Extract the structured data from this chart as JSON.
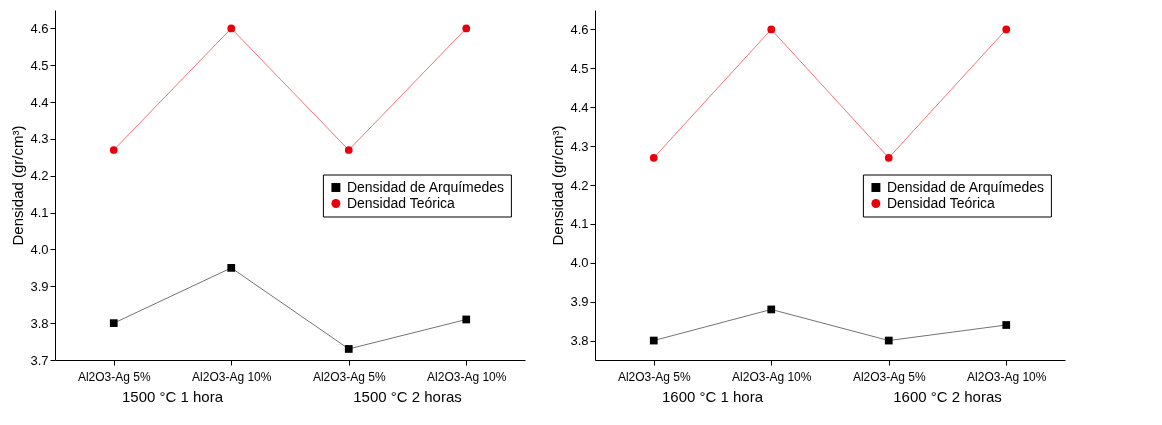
{
  "chart_data": [
    {
      "type": "line",
      "ylabel": "Densidad (gr/cm³)",
      "categories": [
        "Al2O3-Ag 5%",
        "Al2O3-Ag 10%",
        "Al2O3-Ag 5%",
        "Al2O3-Ag 10%"
      ],
      "ylim": [
        3.7,
        4.65
      ],
      "yticks": [
        3.7,
        3.8,
        3.9,
        {
          "value": 4,
          "label": "4.0"
        },
        4.1,
        4.2,
        4.3,
        4.4,
        4.5,
        4.6
      ],
      "grid": false,
      "legend": "right",
      "annotations": [
        "1500 °C 1 hora",
        "1500 °C 2 horas"
      ],
      "series": [
        {
          "name": "Densidad de Arquímedes",
          "color": "#000000",
          "marker": "square",
          "values": [
            3.8,
            3.95,
            3.73,
            3.81
          ]
        },
        {
          "name": "Densidad Teórica",
          "color": "#e8000b",
          "marker": "circle",
          "values": [
            4.27,
            4.6,
            4.27,
            4.6
          ]
        }
      ]
    },
    {
      "type": "line",
      "ylabel": "Densidad (gr/cm³)",
      "categories": [
        "Al2O3-Ag 5%",
        "Al2O3-Ag 10%",
        "Al2O3-Ag 5%",
        "Al2O3-Ag 10%"
      ],
      "ylim": [
        3.75,
        4.65
      ],
      "yticks": [
        3.8,
        3.9,
        {
          "value": 4,
          "label": "4.0"
        },
        4.1,
        4.2,
        4.3,
        4.4,
        4.5,
        4.6
      ],
      "grid": false,
      "legend": "right",
      "annotations": [
        "1600 °C 1 hora",
        "1600 °C 2 horas"
      ],
      "series": [
        {
          "name": "Densidad de Arquímedes",
          "color": "#000000",
          "marker": "square",
          "values": [
            3.8,
            3.88,
            3.8,
            3.84
          ]
        },
        {
          "name": "Densidad Teórica",
          "color": "#e8000b",
          "marker": "circle",
          "values": [
            4.27,
            4.6,
            4.27,
            4.6
          ]
        }
      ]
    }
  ]
}
